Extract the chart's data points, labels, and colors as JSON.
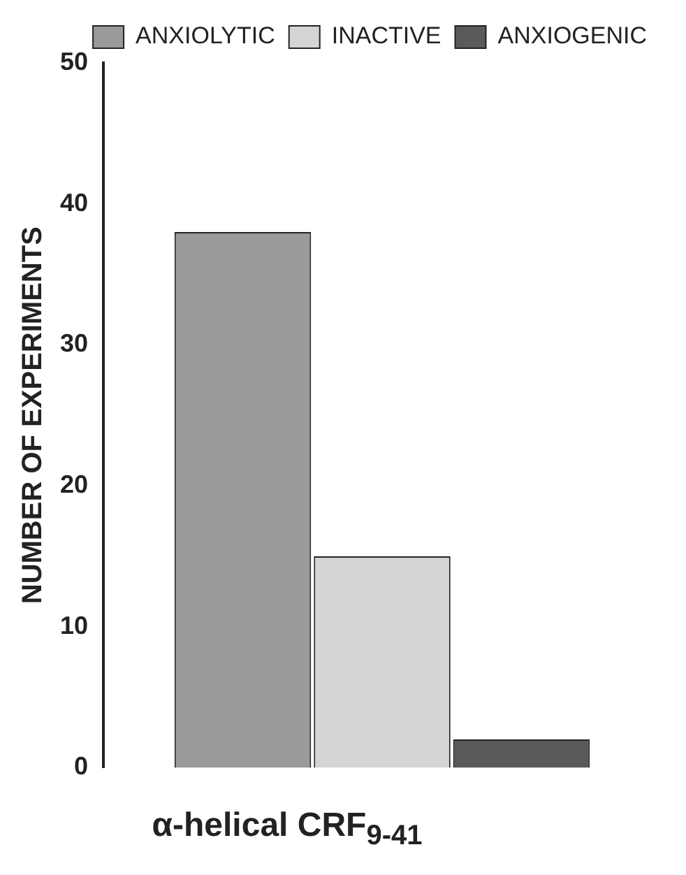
{
  "chart_data": {
    "type": "bar",
    "xlabel": "α-helical CRF$_{9-41}$",
    "ylabel": "NUMBER OF EXPERIMENTS",
    "categories": [
      null
    ],
    "series": [
      {
        "name": "ANXIOLYTIC",
        "color": "#9a9a9a",
        "values": [
          38
        ]
      },
      {
        "name": "INACTIVE",
        "color": "#d4d4d4",
        "values": [
          15
        ]
      },
      {
        "name": "ANXIOGENIC",
        "color": "#5a5a5a",
        "values": [
          2
        ]
      }
    ],
    "ylim": [
      0,
      50
    ],
    "yticks": [
      0,
      10,
      20,
      30,
      40,
      50
    ],
    "grid": false,
    "legend": "top right",
    "tick_labels": "y"
  }
}
